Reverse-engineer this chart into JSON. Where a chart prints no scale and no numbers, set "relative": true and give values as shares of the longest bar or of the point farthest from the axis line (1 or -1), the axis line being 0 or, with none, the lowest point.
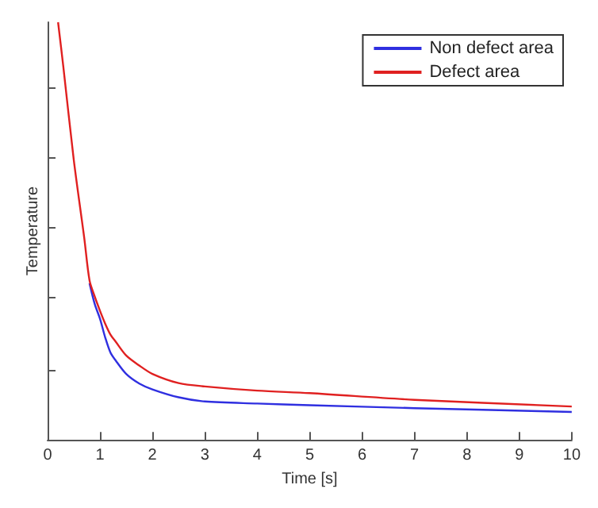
{
  "chart_data": {
    "type": "line",
    "xlabel": "Time [s]",
    "ylabel": "Temperature",
    "relative": true,
    "xlim": [
      0,
      10
    ],
    "xticks": [
      0,
      1,
      2,
      3,
      4,
      5,
      6,
      7,
      8,
      9,
      10
    ],
    "tick_labels": "x",
    "legend": "top right",
    "marker": "none",
    "line_style": "solid",
    "grid": false,
    "x": [
      0.2,
      0.3,
      0.5,
      0.7,
      0.8,
      0.9,
      1.0,
      1.1,
      1.2,
      1.3,
      1.5,
      1.75,
      2,
      2.5,
      3,
      4,
      5,
      7,
      10
    ],
    "series": [
      {
        "name": "Non defect area",
        "color": "#2f2fe0",
        "values": [
          null,
          null,
          null,
          null,
          0.375,
          0.325,
          0.29,
          0.245,
          0.209,
          0.19,
          0.158,
          0.135,
          0.121,
          0.102,
          0.092,
          0.087,
          0.083,
          0.076,
          0.067
        ]
      },
      {
        "name": "Defect area",
        "color": "#e02020",
        "values": [
          1.0,
          0.894,
          0.67,
          0.483,
          0.382,
          0.343,
          0.309,
          0.278,
          0.252,
          0.235,
          0.202,
          0.178,
          0.158,
          0.136,
          0.128,
          0.118,
          0.112,
          0.096,
          0.08
        ]
      }
    ]
  }
}
